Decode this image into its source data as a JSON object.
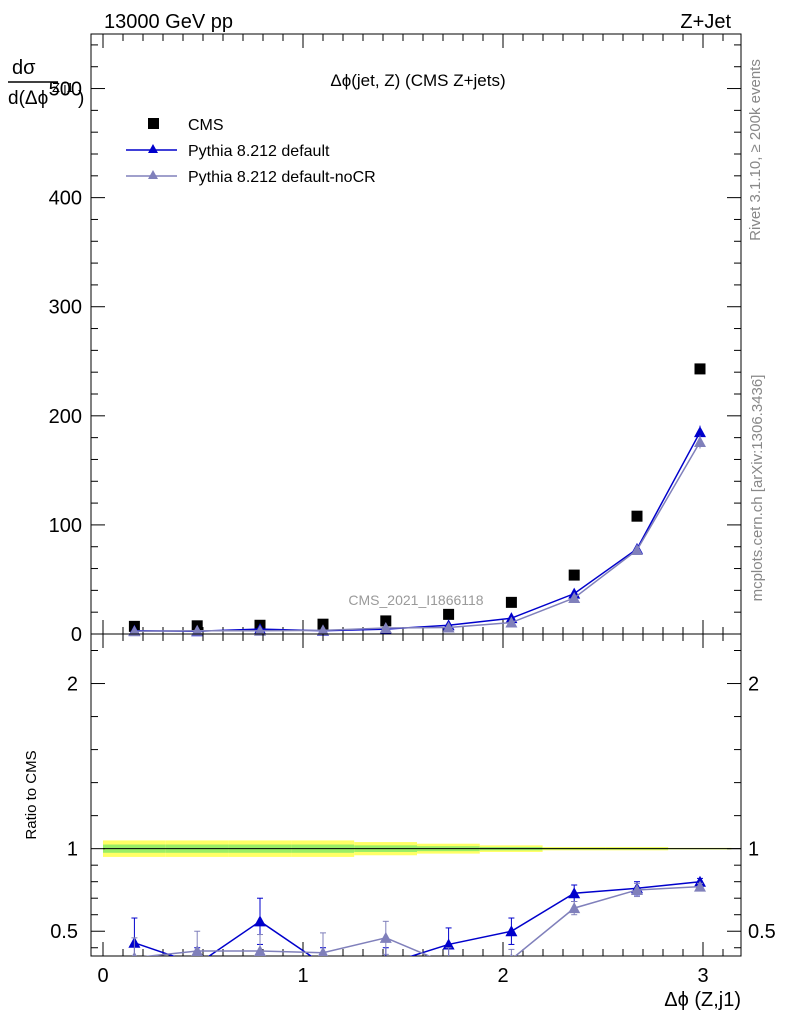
{
  "header": {
    "left": "13000 GeV pp",
    "right": "Z+Jet"
  },
  "side_labels": {
    "rivet": "Rivet 3.1.10, ≥ 200k events",
    "mcplots": "mcplots.cern.ch [arXiv:1306.3436]"
  },
  "plot_title": "Δϕ(jet, Z) (CMS Z+jets)",
  "watermark": "CMS_2021_I1866118",
  "colors": {
    "cms": "#000000",
    "pythia_default": "#0000cc",
    "pythia_nocr": "#8080bb",
    "band_outer": "#ffff66",
    "band_inner": "#99ee66"
  },
  "chart_data": [
    {
      "type": "scatter",
      "panel": "main",
      "ylabel": "dσ / d(Δϕ^{Z,j1})",
      "xlabel": "Δϕ (Z,j1)",
      "xlim": [
        -0.07,
        3.2
      ],
      "ylim": [
        0,
        550
      ],
      "grid": false,
      "legend_position": "top-left",
      "x_ticks": [
        "0",
        "1",
        "2",
        "3"
      ],
      "y_ticks": [
        "0",
        "100",
        "200",
        "300",
        "400",
        "500"
      ],
      "x": [
        0.157,
        0.471,
        0.785,
        1.1,
        1.414,
        1.728,
        2.042,
        2.356,
        2.67,
        2.985
      ],
      "series": [
        {
          "name": "CMS",
          "marker": "square",
          "values": [
            7,
            7.5,
            8,
            9,
            12,
            18,
            29,
            54,
            108,
            243
          ]
        },
        {
          "name": "Pythia 8.212 default",
          "marker": "triangle",
          "values": [
            3,
            2.5,
            4.5,
            3,
            4.5,
            8,
            14.5,
            37,
            78,
            185
          ],
          "errors": [
            0.5,
            0.5,
            0.8,
            0.6,
            0.8,
            1,
            1.5,
            2,
            3,
            6
          ]
        },
        {
          "name": "Pythia 8.212 default-noCR",
          "marker": "triangle",
          "values": [
            2.5,
            3,
            3,
            3.3,
            5.5,
            6,
            10.5,
            33,
            77,
            176
          ],
          "errors": [
            0.5,
            0.5,
            0.8,
            0.6,
            0.8,
            1,
            1.5,
            2,
            3,
            6
          ]
        }
      ]
    },
    {
      "type": "line",
      "panel": "ratio",
      "ylabel": "Ratio to CMS",
      "xlabel": "Δϕ (Z,j1)",
      "xlim": [
        -0.07,
        3.2
      ],
      "ylim": [
        0.35,
        2.3
      ],
      "reference": 1,
      "x_ticks": [
        "0",
        "1",
        "2",
        "3"
      ],
      "y_ticks": [
        "0.5",
        "1",
        "2"
      ],
      "x": [
        0.157,
        0.471,
        0.785,
        1.1,
        1.414,
        1.728,
        2.042,
        2.356,
        2.67,
        2.985
      ],
      "series": [
        {
          "name": "Pythia 8.212 default",
          "values": [
            0.43,
            0.3,
            0.56,
            0.3,
            0.3,
            0.42,
            0.5,
            0.73,
            0.76,
            0.8
          ],
          "errors": [
            0.15,
            0.1,
            0.14,
            0.1,
            0.1,
            0.1,
            0.08,
            0.05,
            0.04,
            0.02
          ]
        },
        {
          "name": "Pythia 8.212 default-noCR",
          "values": [
            0.34,
            0.38,
            0.38,
            0.37,
            0.46,
            0.3,
            0.33,
            0.64,
            0.75,
            0.77
          ],
          "errors": [
            0.12,
            0.12,
            0.1,
            0.12,
            0.1,
            0.1,
            0.06,
            0.04,
            0.04,
            0.02
          ]
        }
      ],
      "band": {
        "x": [
          0.0,
          0.314,
          0.628,
          0.942,
          1.256,
          1.57,
          1.884,
          2.198,
          2.512,
          2.826,
          3.142
        ],
        "outer": [
          0.05,
          0.05,
          0.05,
          0.05,
          0.04,
          0.03,
          0.02,
          0.01,
          0.01,
          0.005
        ],
        "inner": [
          0.025,
          0.025,
          0.025,
          0.025,
          0.02,
          0.015,
          0.01,
          0.005,
          0.005,
          0.003
        ]
      }
    }
  ]
}
